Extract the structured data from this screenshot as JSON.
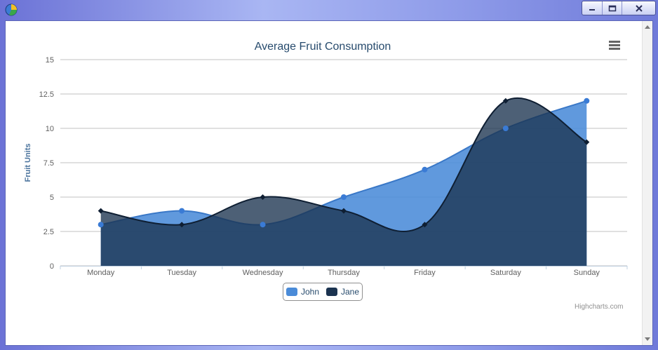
{
  "window": {
    "controls": {
      "minimize": "–",
      "maximize": "□",
      "close": "✕"
    }
  },
  "chart_data": {
    "type": "area",
    "title": "Average Fruit Consumption",
    "ylabel": "Fruit Units",
    "xlabel": "",
    "categories": [
      "Monday",
      "Tuesday",
      "Wednesday",
      "Thursday",
      "Friday",
      "Saturday",
      "Sunday"
    ],
    "series": [
      {
        "name": "John",
        "values": [
          3,
          4,
          3,
          5,
          7,
          10,
          12
        ],
        "color": "#4a8bd8"
      },
      {
        "name": "Jane",
        "values": [
          4,
          3,
          5,
          4,
          3,
          12,
          9
        ],
        "color": "#1b3350"
      }
    ],
    "ylim": [
      0,
      15
    ],
    "yticks": [
      "0",
      "2.5",
      "5",
      "7.5",
      "10",
      "12.5",
      "15"
    ],
    "grid": true,
    "legend": "bottom-center",
    "curve": "spline"
  },
  "legend": {
    "john": "John",
    "jane": "Jane"
  },
  "credits": "Highcharts.com"
}
